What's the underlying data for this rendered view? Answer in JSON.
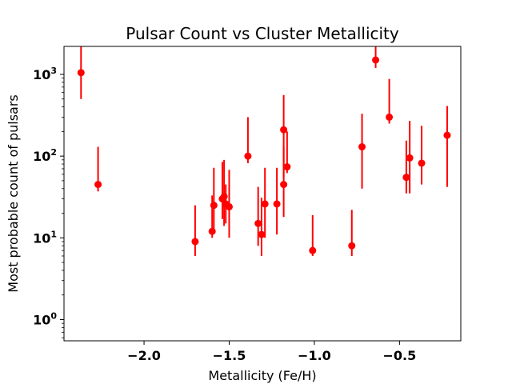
{
  "chart_data": {
    "type": "scatter",
    "title": "Pulsar Count vs Cluster Metallicity",
    "xlabel": "Metallicity (Fe/H)",
    "ylabel": "Most probable count of pulsars",
    "x_scale": "linear",
    "y_scale": "log",
    "xlim": [
      -2.47,
      -0.14
    ],
    "ylim": [
      0.55,
      2200
    ],
    "x_ticks": [
      {
        "value": -2.0,
        "label": "−2.0"
      },
      {
        "value": -1.5,
        "label": "−1.5"
      },
      {
        "value": -1.0,
        "label": "−1.0"
      },
      {
        "value": -0.5,
        "label": "−0.5"
      }
    ],
    "y_ticks": [
      {
        "value": 1,
        "base": "10",
        "exp": "0"
      },
      {
        "value": 10,
        "base": "10",
        "exp": "1"
      },
      {
        "value": 100,
        "base": "10",
        "exp": "2"
      },
      {
        "value": 1000,
        "base": "10",
        "exp": "3"
      }
    ],
    "grid": false,
    "marker_color": "#ff0000",
    "points": [
      {
        "x": -2.37,
        "y": 1050,
        "ylo": 500,
        "yhi": 2200
      },
      {
        "x": -2.27,
        "y": 45,
        "ylo": 37,
        "yhi": 130
      },
      {
        "x": -1.7,
        "y": 9,
        "ylo": 6,
        "yhi": 25
      },
      {
        "x": -1.6,
        "y": 12,
        "ylo": 10,
        "yhi": 33
      },
      {
        "x": -1.59,
        "y": 25,
        "ylo": 12,
        "yhi": 72
      },
      {
        "x": -1.54,
        "y": 30,
        "ylo": 17,
        "yhi": 85
      },
      {
        "x": -1.53,
        "y": 32,
        "ylo": 14,
        "yhi": 90
      },
      {
        "x": -1.52,
        "y": 26,
        "ylo": 15,
        "yhi": 45
      },
      {
        "x": -1.5,
        "y": 24,
        "ylo": 10,
        "yhi": 68
      },
      {
        "x": -1.39,
        "y": 100,
        "ylo": 82,
        "yhi": 300
      },
      {
        "x": -1.33,
        "y": 15,
        "ylo": 8,
        "yhi": 42
      },
      {
        "x": -1.31,
        "y": 11,
        "ylo": 6,
        "yhi": 31
      },
      {
        "x": -1.29,
        "y": 26,
        "ylo": 10,
        "yhi": 72
      },
      {
        "x": -1.22,
        "y": 26,
        "ylo": 11,
        "yhi": 72
      },
      {
        "x": -1.18,
        "y": 45,
        "ylo": 18,
        "yhi": 130
      },
      {
        "x": -1.18,
        "y": 210,
        "ylo": 55,
        "yhi": 560
      },
      {
        "x": -1.16,
        "y": 74,
        "ylo": 62,
        "yhi": 200
      },
      {
        "x": -1.01,
        "y": 7,
        "ylo": 6,
        "yhi": 19
      },
      {
        "x": -0.78,
        "y": 8,
        "ylo": 6,
        "yhi": 22
      },
      {
        "x": -0.72,
        "y": 130,
        "ylo": 40,
        "yhi": 330
      },
      {
        "x": -0.64,
        "y": 1500,
        "ylo": 1200,
        "yhi": 2200
      },
      {
        "x": -0.56,
        "y": 300,
        "ylo": 250,
        "yhi": 880
      },
      {
        "x": -0.46,
        "y": 55,
        "ylo": 35,
        "yhi": 155
      },
      {
        "x": -0.44,
        "y": 95,
        "ylo": 35,
        "yhi": 270
      },
      {
        "x": -0.37,
        "y": 82,
        "ylo": 45,
        "yhi": 235
      },
      {
        "x": -0.22,
        "y": 180,
        "ylo": 42,
        "yhi": 410
      }
    ]
  }
}
